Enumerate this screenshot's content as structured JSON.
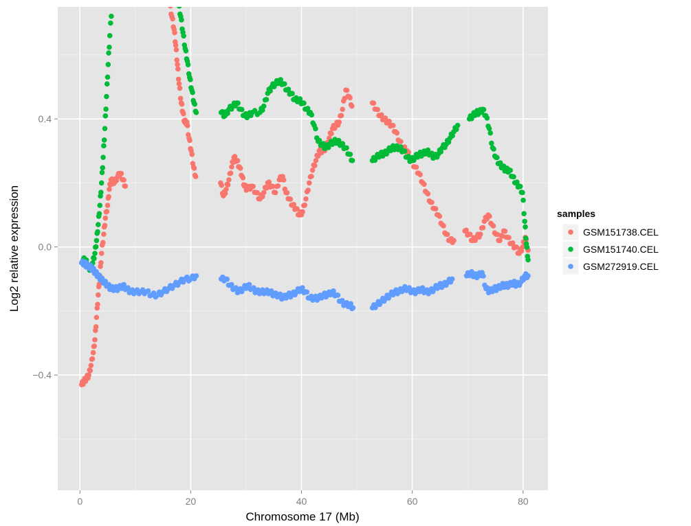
{
  "chart_data": {
    "type": "scatter",
    "xlabel": "Chromosome 17 (Mb)",
    "ylabel": "Log2 relative expression",
    "xlim": [
      -4,
      84.5
    ],
    "ylim": [
      -0.76,
      0.75
    ],
    "x_ticks": [
      0,
      20,
      40,
      60,
      80
    ],
    "x_tick_labels": [
      "0",
      "20",
      "40",
      "60",
      "80"
    ],
    "y_ticks": [
      -0.4,
      0.0,
      0.4
    ],
    "y_tick_labels": [
      "−0.4",
      "0.0",
      "0.4"
    ],
    "grid": true,
    "panel_background": "#e5e5e5",
    "grid_color": "#ffffff",
    "legend": {
      "title": "samples",
      "position": "right"
    },
    "series": [
      {
        "name": "GSM151738.CEL",
        "color": "#f8766d",
        "points": [
          [
            0.3,
            -0.43
          ],
          [
            0.7,
            -0.42
          ],
          [
            1.2,
            -0.41
          ],
          [
            1.6,
            -0.4
          ],
          [
            2.0,
            -0.37
          ],
          [
            2.4,
            -0.33
          ],
          [
            2.7,
            -0.29
          ],
          [
            3.0,
            -0.22
          ],
          [
            3.3,
            -0.15
          ],
          [
            3.6,
            -0.09
          ],
          [
            3.9,
            -0.02
          ],
          [
            4.3,
            0.04
          ],
          [
            4.6,
            0.09
          ],
          [
            5.0,
            0.13
          ],
          [
            5.3,
            0.18
          ],
          [
            5.6,
            0.21
          ],
          [
            6.2,
            0.2
          ],
          [
            6.8,
            0.22
          ],
          [
            7.3,
            0.23
          ],
          [
            7.8,
            0.21
          ],
          [
            8.2,
            0.19
          ],
          [
            16.2,
            0.76
          ],
          [
            16.6,
            0.72
          ],
          [
            17.0,
            0.68
          ],
          [
            17.3,
            0.63
          ],
          [
            17.6,
            0.57
          ],
          [
            17.9,
            0.51
          ],
          [
            18.3,
            0.45
          ],
          [
            18.6,
            0.42
          ],
          [
            18.9,
            0.39
          ],
          [
            19.3,
            0.39
          ],
          [
            19.7,
            0.34
          ],
          [
            20.1,
            0.3
          ],
          [
            20.5,
            0.25
          ],
          [
            20.9,
            0.22
          ],
          [
            25.4,
            0.2
          ],
          [
            25.9,
            0.16
          ],
          [
            26.4,
            0.18
          ],
          [
            26.9,
            0.21
          ],
          [
            27.4,
            0.25
          ],
          [
            27.8,
            0.28
          ],
          [
            28.3,
            0.27
          ],
          [
            28.8,
            0.25
          ],
          [
            29.3,
            0.22
          ],
          [
            29.7,
            0.19
          ],
          [
            30.2,
            0.18
          ],
          [
            31.0,
            0.19
          ],
          [
            31.8,
            0.17
          ],
          [
            32.5,
            0.15
          ],
          [
            33.2,
            0.17
          ],
          [
            33.9,
            0.2
          ],
          [
            34.6,
            0.19
          ],
          [
            35.3,
            0.17
          ],
          [
            36.0,
            0.21
          ],
          [
            36.6,
            0.22
          ],
          [
            37.2,
            0.17
          ],
          [
            37.8,
            0.15
          ],
          [
            38.4,
            0.13
          ],
          [
            39.0,
            0.12
          ],
          [
            39.6,
            0.1
          ],
          [
            40.2,
            0.11
          ],
          [
            40.8,
            0.15
          ],
          [
            41.4,
            0.2
          ],
          [
            42.0,
            0.24
          ],
          [
            42.6,
            0.27
          ],
          [
            43.2,
            0.3
          ],
          [
            43.8,
            0.3
          ],
          [
            44.4,
            0.31
          ],
          [
            45.0,
            0.34
          ],
          [
            45.6,
            0.37
          ],
          [
            46.2,
            0.38
          ],
          [
            46.8,
            0.39
          ],
          [
            47.4,
            0.43
          ],
          [
            48.0,
            0.49
          ],
          [
            48.6,
            0.47
          ],
          [
            49.1,
            0.44
          ],
          [
            52.8,
            0.45
          ],
          [
            53.5,
            0.43
          ],
          [
            54.2,
            0.41
          ],
          [
            54.9,
            0.4
          ],
          [
            55.6,
            0.39
          ],
          [
            56.3,
            0.38
          ],
          [
            57.0,
            0.36
          ],
          [
            57.7,
            0.33
          ],
          [
            58.4,
            0.31
          ],
          [
            59.1,
            0.3
          ],
          [
            59.8,
            0.27
          ],
          [
            60.5,
            0.25
          ],
          [
            61.2,
            0.23
          ],
          [
            61.9,
            0.2
          ],
          [
            62.6,
            0.17
          ],
          [
            63.3,
            0.14
          ],
          [
            64.0,
            0.12
          ],
          [
            64.7,
            0.1
          ],
          [
            65.4,
            0.07
          ],
          [
            66.1,
            0.04
          ],
          [
            66.8,
            0.02
          ],
          [
            67.5,
            0.02
          ],
          [
            69.5,
            0.05
          ],
          [
            70.2,
            0.04
          ],
          [
            70.9,
            0.02
          ],
          [
            71.6,
            0.03
          ],
          [
            72.3,
            0.04
          ],
          [
            73.0,
            0.08
          ],
          [
            73.7,
            0.1
          ],
          [
            74.4,
            0.07
          ],
          [
            75.1,
            0.04
          ],
          [
            75.8,
            0.02
          ],
          [
            76.5,
            0.05
          ],
          [
            77.2,
            0.03
          ],
          [
            77.9,
            0.01
          ],
          [
            78.6,
            0.0
          ],
          [
            79.3,
            -0.02
          ],
          [
            79.9,
            0.0
          ],
          [
            80.4,
            0.03
          ],
          [
            80.9,
            -0.01
          ]
        ]
      },
      {
        "name": "GSM151740.CEL",
        "color": "#00ba38",
        "points": [
          [
            0.6,
            -0.04
          ],
          [
            1.0,
            -0.04
          ],
          [
            1.5,
            -0.06
          ],
          [
            1.9,
            -0.07
          ],
          [
            2.3,
            -0.05
          ],
          [
            2.7,
            -0.02
          ],
          [
            3.0,
            0.02
          ],
          [
            3.3,
            0.07
          ],
          [
            3.6,
            0.13
          ],
          [
            3.9,
            0.2
          ],
          [
            4.2,
            0.28
          ],
          [
            4.5,
            0.37
          ],
          [
            4.8,
            0.47
          ],
          [
            5.1,
            0.57
          ],
          [
            5.4,
            0.66
          ],
          [
            5.8,
            0.76
          ],
          [
            17.8,
            0.76
          ],
          [
            18.2,
            0.72
          ],
          [
            18.6,
            0.67
          ],
          [
            19.0,
            0.62
          ],
          [
            19.4,
            0.58
          ],
          [
            19.8,
            0.53
          ],
          [
            20.2,
            0.49
          ],
          [
            20.6,
            0.45
          ],
          [
            21.0,
            0.42
          ],
          [
            25.5,
            0.42
          ],
          [
            26.2,
            0.41
          ],
          [
            26.9,
            0.43
          ],
          [
            27.6,
            0.44
          ],
          [
            28.3,
            0.45
          ],
          [
            29.0,
            0.43
          ],
          [
            29.7,
            0.41
          ],
          [
            30.4,
            0.41
          ],
          [
            31.1,
            0.42
          ],
          [
            32.5,
            0.42
          ],
          [
            33.2,
            0.44
          ],
          [
            33.9,
            0.48
          ],
          [
            34.6,
            0.5
          ],
          [
            35.3,
            0.51
          ],
          [
            36.0,
            0.52
          ],
          [
            36.7,
            0.51
          ],
          [
            37.4,
            0.49
          ],
          [
            38.1,
            0.48
          ],
          [
            38.8,
            0.46
          ],
          [
            39.5,
            0.46
          ],
          [
            40.2,
            0.45
          ],
          [
            40.9,
            0.43
          ],
          [
            41.6,
            0.42
          ],
          [
            42.3,
            0.38
          ],
          [
            43.0,
            0.33
          ],
          [
            43.7,
            0.32
          ],
          [
            44.4,
            0.31
          ],
          [
            45.1,
            0.32
          ],
          [
            45.8,
            0.33
          ],
          [
            46.5,
            0.33
          ],
          [
            47.2,
            0.32
          ],
          [
            47.9,
            0.31
          ],
          [
            48.6,
            0.29
          ],
          [
            49.2,
            0.27
          ],
          [
            52.8,
            0.27
          ],
          [
            53.5,
            0.28
          ],
          [
            54.2,
            0.29
          ],
          [
            54.9,
            0.29
          ],
          [
            55.6,
            0.3
          ],
          [
            56.3,
            0.31
          ],
          [
            57.0,
            0.31
          ],
          [
            57.7,
            0.31
          ],
          [
            58.4,
            0.3
          ],
          [
            59.1,
            0.28
          ],
          [
            59.8,
            0.27
          ],
          [
            60.5,
            0.28
          ],
          [
            61.2,
            0.29
          ],
          [
            61.9,
            0.29
          ],
          [
            62.6,
            0.3
          ],
          [
            63.3,
            0.29
          ],
          [
            64.0,
            0.28
          ],
          [
            64.7,
            0.29
          ],
          [
            65.4,
            0.31
          ],
          [
            66.1,
            0.32
          ],
          [
            66.8,
            0.34
          ],
          [
            67.5,
            0.36
          ],
          [
            68.2,
            0.38
          ],
          [
            70.3,
            0.4
          ],
          [
            70.9,
            0.41
          ],
          [
            71.5,
            0.42
          ],
          [
            72.1,
            0.42
          ],
          [
            72.7,
            0.43
          ],
          [
            73.3,
            0.41
          ],
          [
            73.9,
            0.37
          ],
          [
            74.5,
            0.31
          ],
          [
            75.1,
            0.28
          ],
          [
            75.7,
            0.26
          ],
          [
            76.3,
            0.25
          ],
          [
            76.9,
            0.24
          ],
          [
            77.5,
            0.24
          ],
          [
            78.1,
            0.22
          ],
          [
            78.7,
            0.2
          ],
          [
            79.3,
            0.19
          ],
          [
            79.9,
            0.17
          ],
          [
            80.3,
            0.08
          ],
          [
            80.6,
            0.01
          ],
          [
            80.9,
            -0.04
          ]
        ]
      },
      {
        "name": "GSM272919.CEL",
        "color": "#619cff",
        "points": [
          [
            0.3,
            -0.05
          ],
          [
            0.8,
            -0.05
          ],
          [
            1.3,
            -0.06
          ],
          [
            1.8,
            -0.06
          ],
          [
            2.3,
            -0.07
          ],
          [
            2.8,
            -0.08
          ],
          [
            3.3,
            -0.09
          ],
          [
            3.8,
            -0.1
          ],
          [
            4.4,
            -0.11
          ],
          [
            5.0,
            -0.12
          ],
          [
            5.6,
            -0.13
          ],
          [
            6.3,
            -0.13
          ],
          [
            7.0,
            -0.13
          ],
          [
            7.7,
            -0.12
          ],
          [
            8.4,
            -0.13
          ],
          [
            9.2,
            -0.14
          ],
          [
            10.0,
            -0.14
          ],
          [
            11.0,
            -0.14
          ],
          [
            12.0,
            -0.14
          ],
          [
            13.0,
            -0.15
          ],
          [
            14.0,
            -0.15
          ],
          [
            15.0,
            -0.14
          ],
          [
            16.0,
            -0.13
          ],
          [
            17.0,
            -0.12
          ],
          [
            18.0,
            -0.11
          ],
          [
            19.0,
            -0.1
          ],
          [
            20.0,
            -0.1
          ],
          [
            21.0,
            -0.09
          ],
          [
            25.5,
            -0.1
          ],
          [
            26.3,
            -0.1
          ],
          [
            27.1,
            -0.12
          ],
          [
            27.9,
            -0.13
          ],
          [
            28.7,
            -0.14
          ],
          [
            29.5,
            -0.13
          ],
          [
            30.3,
            -0.12
          ],
          [
            31.1,
            -0.13
          ],
          [
            31.9,
            -0.14
          ],
          [
            32.7,
            -0.14
          ],
          [
            33.5,
            -0.14
          ],
          [
            34.3,
            -0.14
          ],
          [
            35.1,
            -0.15
          ],
          [
            35.9,
            -0.15
          ],
          [
            36.7,
            -0.16
          ],
          [
            37.5,
            -0.15
          ],
          [
            38.3,
            -0.15
          ],
          [
            39.1,
            -0.14
          ],
          [
            39.9,
            -0.13
          ],
          [
            40.7,
            -0.14
          ],
          [
            41.5,
            -0.16
          ],
          [
            42.3,
            -0.16
          ],
          [
            43.1,
            -0.16
          ],
          [
            43.9,
            -0.15
          ],
          [
            44.7,
            -0.15
          ],
          [
            45.5,
            -0.14
          ],
          [
            46.3,
            -0.15
          ],
          [
            47.1,
            -0.17
          ],
          [
            47.9,
            -0.18
          ],
          [
            48.7,
            -0.18
          ],
          [
            49.3,
            -0.19
          ],
          [
            52.8,
            -0.19
          ],
          [
            53.6,
            -0.18
          ],
          [
            54.4,
            -0.17
          ],
          [
            55.2,
            -0.16
          ],
          [
            56.0,
            -0.15
          ],
          [
            56.8,
            -0.14
          ],
          [
            57.6,
            -0.14
          ],
          [
            58.4,
            -0.13
          ],
          [
            59.2,
            -0.13
          ],
          [
            60.0,
            -0.14
          ],
          [
            60.8,
            -0.14
          ],
          [
            61.6,
            -0.13
          ],
          [
            62.4,
            -0.14
          ],
          [
            63.2,
            -0.14
          ],
          [
            64.0,
            -0.13
          ],
          [
            64.8,
            -0.12
          ],
          [
            65.6,
            -0.12
          ],
          [
            66.4,
            -0.11
          ],
          [
            67.2,
            -0.1
          ],
          [
            69.8,
            -0.09
          ],
          [
            70.5,
            -0.08
          ],
          [
            71.2,
            -0.09
          ],
          [
            71.9,
            -0.09
          ],
          [
            72.6,
            -0.08
          ],
          [
            73.3,
            -0.13
          ],
          [
            74.0,
            -0.14
          ],
          [
            74.7,
            -0.13
          ],
          [
            75.4,
            -0.13
          ],
          [
            76.1,
            -0.12
          ],
          [
            76.8,
            -0.12
          ],
          [
            77.5,
            -0.12
          ],
          [
            78.2,
            -0.11
          ],
          [
            78.9,
            -0.12
          ],
          [
            79.6,
            -0.11
          ],
          [
            80.3,
            -0.09
          ],
          [
            80.9,
            -0.09
          ]
        ]
      }
    ]
  }
}
